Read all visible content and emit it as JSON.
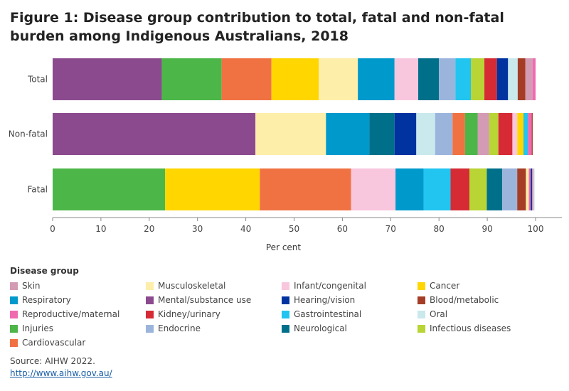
{
  "chart_data": {
    "type": "bar",
    "orientation": "horizontal",
    "stacked": true,
    "title": "Figure 1: Disease group contribution to total, fatal and non-fatal burden among Indigenous Australians, 2018",
    "xlabel": "Per cent",
    "ylabel": "",
    "xlim": [
      0,
      100
    ],
    "xticks": [
      0,
      10,
      20,
      30,
      40,
      50,
      60,
      70,
      80,
      90,
      100
    ],
    "categories": [
      "Total",
      "Non-fatal",
      "Fatal"
    ],
    "legend_title": "Disease group",
    "legend": [
      {
        "name": "Skin",
        "color": "#d49bb4"
      },
      {
        "name": "Musculoskeletal",
        "color": "#fdeeaa"
      },
      {
        "name": "Infant/congenital",
        "color": "#f8c6dd"
      },
      {
        "name": "Cancer",
        "color": "#ffd600"
      },
      {
        "name": "Respiratory",
        "color": "#0099cc"
      },
      {
        "name": "Mental/substance use",
        "color": "#8b4a8e"
      },
      {
        "name": "Hearing/vision",
        "color": "#0033a0"
      },
      {
        "name": "Blood/metabolic",
        "color": "#a53d26"
      },
      {
        "name": "Reproductive/maternal",
        "color": "#f06ab0"
      },
      {
        "name": "Kidney/urinary",
        "color": "#d62b35"
      },
      {
        "name": "Gastrointestinal",
        "color": "#22c4f0"
      },
      {
        "name": "Oral",
        "color": "#c9e9ec"
      },
      {
        "name": "Injuries",
        "color": "#4cb648"
      },
      {
        "name": "Endocrine",
        "color": "#9bb4dc"
      },
      {
        "name": "Neurological",
        "color": "#00708a"
      },
      {
        "name": "Infectious diseases",
        "color": "#b8d435"
      },
      {
        "name": "Cardiovascular",
        "color": "#f07243"
      }
    ],
    "bars": [
      {
        "category": "Total",
        "segments": [
          {
            "group": "Mental/substance use",
            "value": 22.6
          },
          {
            "group": "Injuries",
            "value": 12.4
          },
          {
            "group": "Cardiovascular",
            "value": 10.3
          },
          {
            "group": "Cancer",
            "value": 9.8
          },
          {
            "group": "Musculoskeletal",
            "value": 8.1
          },
          {
            "group": "Respiratory",
            "value": 7.6
          },
          {
            "group": "Infant/congenital",
            "value": 4.9
          },
          {
            "group": "Neurological",
            "value": 4.3
          },
          {
            "group": "Endocrine",
            "value": 3.4
          },
          {
            "group": "Gastrointestinal",
            "value": 3.2
          },
          {
            "group": "Infectious diseases",
            "value": 2.8
          },
          {
            "group": "Kidney/urinary",
            "value": 2.6
          },
          {
            "group": "Hearing/vision",
            "value": 2.3
          },
          {
            "group": "Oral",
            "value": 2.0
          },
          {
            "group": "Blood/metabolic",
            "value": 1.6
          },
          {
            "group": "Skin",
            "value": 1.5
          },
          {
            "group": "Reproductive/maternal",
            "value": 0.6
          }
        ]
      },
      {
        "category": "Non-fatal",
        "segments": [
          {
            "group": "Mental/substance use",
            "value": 42.0
          },
          {
            "group": "Musculoskeletal",
            "value": 14.6
          },
          {
            "group": "Respiratory",
            "value": 9.0
          },
          {
            "group": "Neurological",
            "value": 5.2
          },
          {
            "group": "Hearing/vision",
            "value": 4.5
          },
          {
            "group": "Oral",
            "value": 3.9
          },
          {
            "group": "Endocrine",
            "value": 3.6
          },
          {
            "group": "Cardiovascular",
            "value": 2.6
          },
          {
            "group": "Injuries",
            "value": 2.6
          },
          {
            "group": "Skin",
            "value": 2.4
          },
          {
            "group": "Infectious diseases",
            "value": 1.9
          },
          {
            "group": "Kidney/urinary",
            "value": 2.9
          },
          {
            "group": "Infant/congenital",
            "value": 1.0
          },
          {
            "group": "Cancer",
            "value": 1.3
          },
          {
            "group": "Gastrointestinal",
            "value": 0.9
          },
          {
            "group": "Reproductive/maternal",
            "value": 0.8
          },
          {
            "group": "Blood/metabolic",
            "value": 0.2
          }
        ]
      },
      {
        "category": "Fatal",
        "segments": [
          {
            "group": "Injuries",
            "value": 23.3
          },
          {
            "group": "Cancer",
            "value": 19.6
          },
          {
            "group": "Cardiovascular",
            "value": 18.9
          },
          {
            "group": "Infant/congenital",
            "value": 9.2
          },
          {
            "group": "Respiratory",
            "value": 5.8
          },
          {
            "group": "Gastrointestinal",
            "value": 5.6
          },
          {
            "group": "Kidney/urinary",
            "value": 3.9
          },
          {
            "group": "Infectious diseases",
            "value": 3.6
          },
          {
            "group": "Neurological",
            "value": 3.2
          },
          {
            "group": "Endocrine",
            "value": 3.1
          },
          {
            "group": "Blood/metabolic",
            "value": 1.8
          },
          {
            "group": "Musculoskeletal",
            "value": 0.6
          },
          {
            "group": "Reproductive/maternal",
            "value": 0.4
          },
          {
            "group": "Hearing/vision",
            "value": 0.3
          },
          {
            "group": "Skin",
            "value": 0.3
          },
          {
            "group": "Oral",
            "value": 0.2
          }
        ]
      }
    ]
  },
  "source": {
    "text": "Source: AIHW 2022.",
    "link": "http://www.aihw.gov.au/"
  }
}
